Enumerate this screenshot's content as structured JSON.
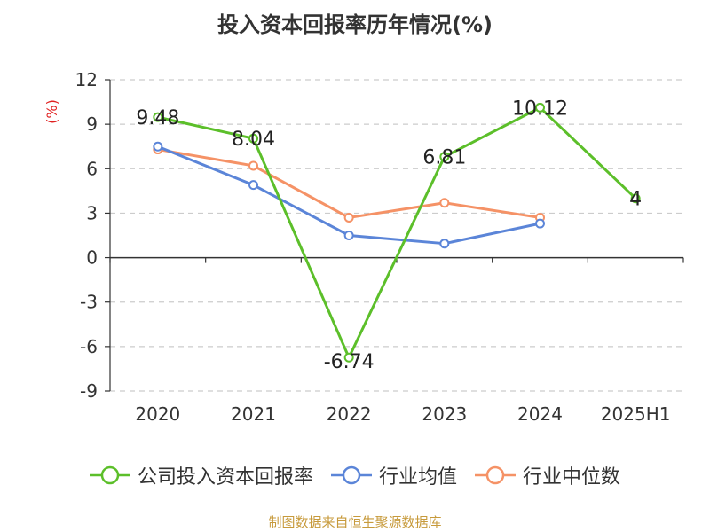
{
  "title": "投入资本回报率历年情况(%)",
  "source_note": "制图数据来自恒生聚源数据库",
  "colors": {
    "source": "#c79a3b",
    "axis_text": "#333333",
    "unit": "#e02020"
  },
  "chart_data": {
    "type": "line",
    "title": "投入资本回报率历年情况(%)",
    "ylabel": "(%)",
    "ylim": [
      -9,
      12
    ],
    "yticks": [
      12,
      9,
      6,
      3,
      0,
      -3,
      -6,
      -9
    ],
    "categories": [
      "2020",
      "2021",
      "2022",
      "2023",
      "2024",
      "2025H1"
    ],
    "grid": true,
    "legend_position": "bottom",
    "series": [
      {
        "name": "公司投入资本回报率",
        "color": "#5cbf2a",
        "values": [
          9.48,
          8.04,
          -6.74,
          6.81,
          10.12,
          4
        ],
        "labels": [
          "9.48",
          "8.04",
          "-6.74",
          "6.81",
          "10.12",
          "4"
        ]
      },
      {
        "name": "行业均值",
        "color": "#5b85d8",
        "values": [
          7.5,
          4.9,
          1.5,
          0.95,
          2.3,
          null
        ]
      },
      {
        "name": "行业中位数",
        "color": "#f59266",
        "values": [
          7.3,
          6.2,
          2.7,
          3.7,
          2.7,
          null
        ]
      }
    ]
  }
}
